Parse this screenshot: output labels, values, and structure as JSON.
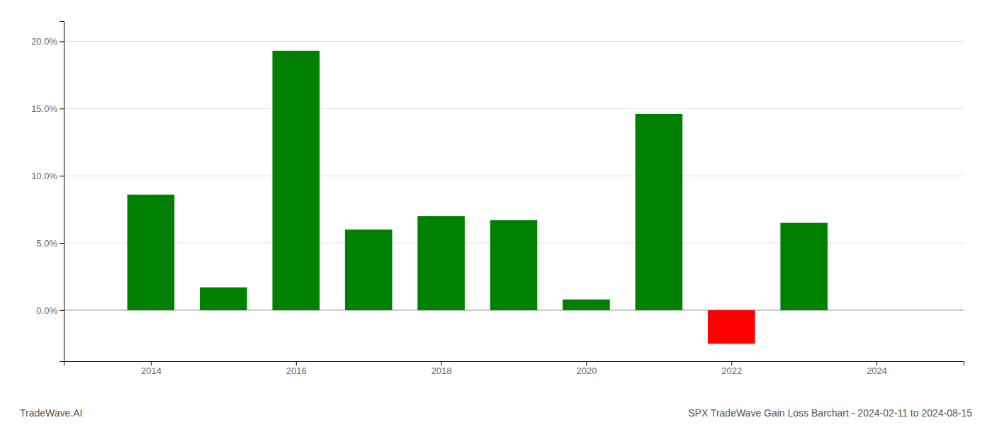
{
  "chart_data": {
    "type": "bar",
    "title": "SPX TradeWave Gain Loss Barchart - 2024-02-11 to 2024-08-15",
    "annotations": [
      "TradeWave.AI"
    ],
    "x": [
      2014,
      2015,
      2016,
      2017,
      2018,
      2019,
      2020,
      2021,
      2022,
      2023
    ],
    "values": [
      0.086,
      0.017,
      0.193,
      0.06,
      0.07,
      0.067,
      0.008,
      0.146,
      -0.025,
      0.065
    ],
    "colors": [
      "#008000",
      "#008000",
      "#008000",
      "#008000",
      "#008000",
      "#008000",
      "#008000",
      "#008000",
      "#FF0000",
      "#008000"
    ],
    "xlim": [
      2012.8,
      2025.2
    ],
    "xticks": [
      2014,
      2016,
      2018,
      2020,
      2022,
      2024
    ],
    "ylim": [
      -0.038,
      0.215
    ],
    "yticks": [
      {
        "value": 0.0,
        "label": "0.0%"
      },
      {
        "value": 0.05,
        "label": "5.0%"
      },
      {
        "value": 0.1,
        "label": "10.0%"
      },
      {
        "value": 0.15,
        "label": "15.0%"
      },
      {
        "value": 0.2,
        "label": "20.0%"
      }
    ],
    "grid": true
  }
}
